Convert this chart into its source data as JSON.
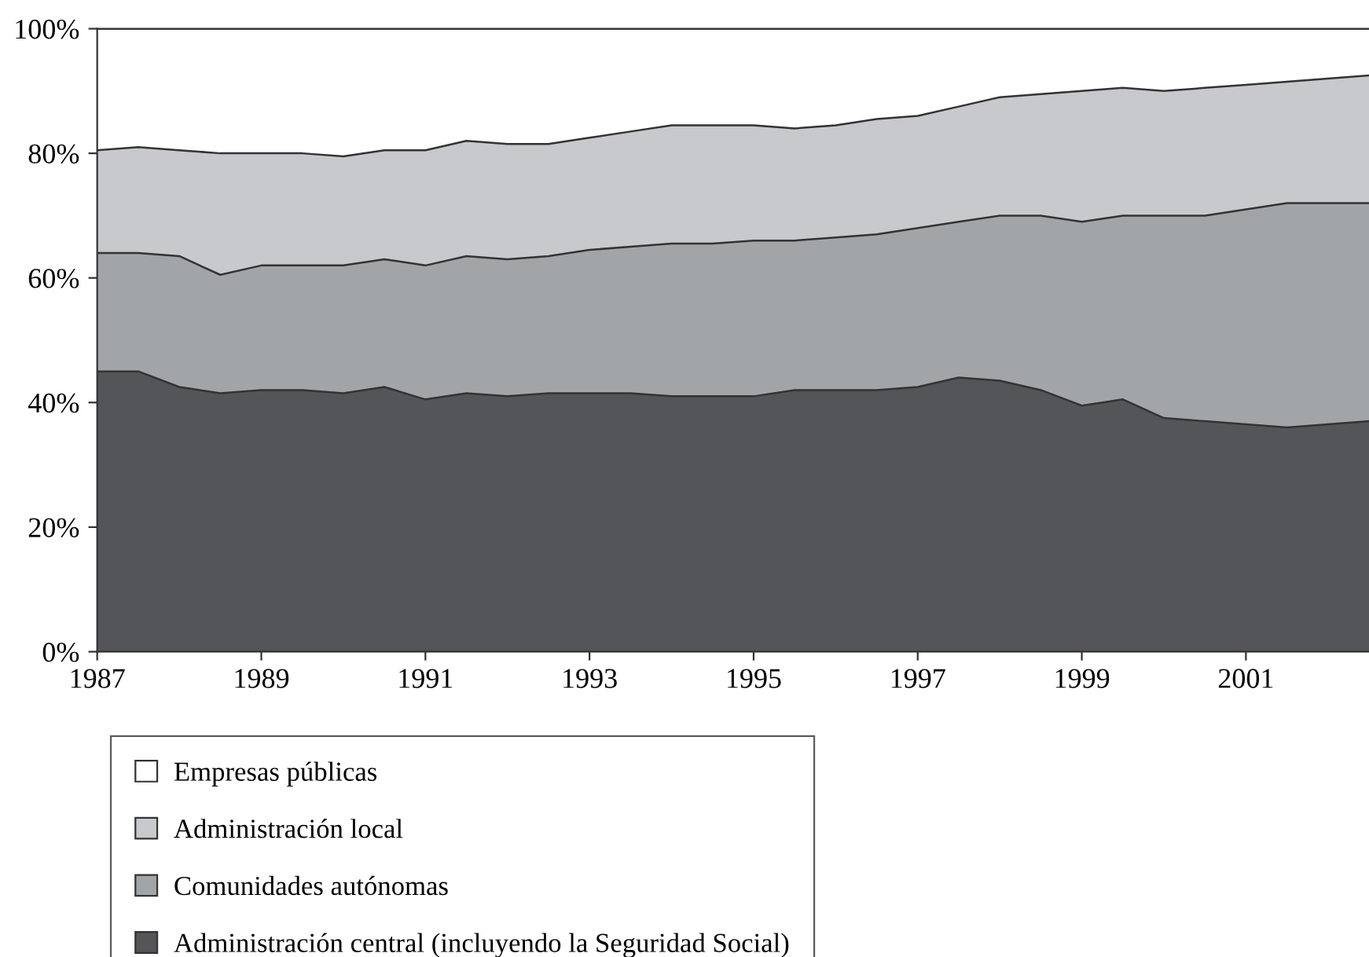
{
  "chart_data": {
    "type": "area",
    "stacked": true,
    "x": [
      1987,
      1987.5,
      1988,
      1988.5,
      1989,
      1989.5,
      1990,
      1990.5,
      1991,
      1991.5,
      1992,
      1992.5,
      1993,
      1993.5,
      1994,
      1994.5,
      1995,
      1995.5,
      1996,
      1996.5,
      1997,
      1997.5,
      1998,
      1998.5,
      1999,
      1999.5,
      2000,
      2000.5,
      2001,
      2001.5,
      2002,
      2002.5
    ],
    "series": [
      {
        "name": "Administración central (incluyendo la Seguridad Social)",
        "color": "#545559",
        "values": [
          45,
          45,
          42.5,
          41.5,
          42,
          42,
          41.5,
          42.5,
          40.5,
          41.5,
          41,
          41.5,
          41.5,
          41.5,
          41,
          41,
          41,
          42,
          42,
          42,
          42.5,
          44,
          43.5,
          42,
          39.5,
          40.5,
          37.5,
          37,
          36.5,
          36,
          36.5,
          37
        ]
      },
      {
        "name": "Comunidades autónomas",
        "color": "#a2a5a8",
        "values": [
          19,
          19,
          21,
          19,
          20,
          20,
          20.5,
          20.5,
          21.5,
          22,
          22,
          22,
          23,
          23.5,
          24.5,
          24.5,
          25,
          24,
          24.5,
          25,
          25.5,
          25,
          26.5,
          28,
          29.5,
          29.5,
          32.5,
          33,
          34.5,
          36,
          35.5,
          35
        ]
      },
      {
        "name": "Administración local",
        "color": "#c8c9cc",
        "values": [
          16.5,
          17,
          17,
          19.5,
          18,
          18,
          17.5,
          17.5,
          18.5,
          18.5,
          18.5,
          18,
          18,
          18.5,
          19,
          19,
          18.5,
          18,
          18,
          18.5,
          18,
          18.5,
          19,
          19.5,
          21,
          20.5,
          20,
          20.5,
          20,
          19.5,
          20,
          20.5
        ]
      },
      {
        "name": "Empresas públicas",
        "color": "#ffffff",
        "values": [
          19.5,
          19,
          19.5,
          20,
          20,
          20,
          20.5,
          19.5,
          19.5,
          18,
          18.5,
          18.5,
          17.5,
          16.5,
          15.5,
          15.5,
          15.5,
          16,
          15.5,
          14.5,
          14,
          12.5,
          11,
          10.5,
          10,
          9.5,
          10,
          9.5,
          9,
          8.5,
          8,
          7.5
        ]
      }
    ],
    "xlim": [
      1987,
      2002.5
    ],
    "xticks": [
      1987,
      1989,
      1991,
      1993,
      1995,
      1997,
      1999,
      2001
    ],
    "ylim": [
      0,
      100
    ],
    "yticks": [
      {
        "value": 0,
        "label": "0%"
      },
      {
        "value": 20,
        "label": "20%"
      },
      {
        "value": 40,
        "label": "40%"
      },
      {
        "value": 60,
        "label": "60%"
      },
      {
        "value": 80,
        "label": "80%"
      },
      {
        "value": 100,
        "label": "100%"
      }
    ],
    "grid": false,
    "legend": "bottom"
  }
}
